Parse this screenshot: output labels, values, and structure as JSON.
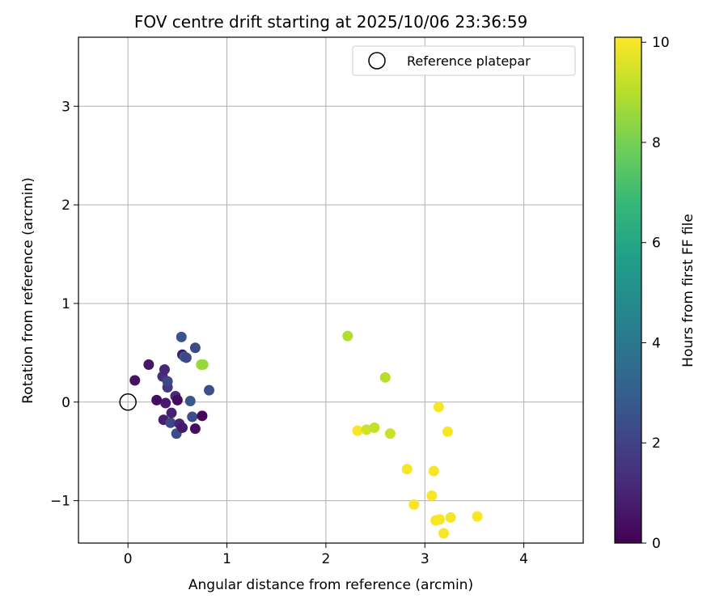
{
  "chart_data": {
    "type": "scatter",
    "title": "FOV centre drift starting at 2025/10/06 23:36:59",
    "xlabel": "Angular distance from reference (arcmin)",
    "ylabel": "Rotation from reference (arcmin)",
    "xlim": [
      -0.5,
      4.6
    ],
    "ylim": [
      -1.43,
      3.7
    ],
    "xticks": [
      0,
      1,
      2,
      3,
      4
    ],
    "xtick_labels": [
      "0",
      "1",
      "2",
      "3",
      "4"
    ],
    "yticks": [
      -1,
      0,
      1,
      2,
      3
    ],
    "ytick_labels": [
      "−1",
      "0",
      "1",
      "2",
      "3"
    ],
    "grid": true,
    "legend": {
      "location": "top-right",
      "entries": [
        "Reference platepar"
      ]
    },
    "reference": {
      "name": "Reference platepar",
      "x": 0,
      "y": 0
    },
    "colorbar": {
      "label": "Hours from first FF file",
      "min": 0,
      "max": 10.1,
      "ticks": [
        0,
        2,
        4,
        6,
        8,
        10
      ],
      "tick_labels": [
        "0",
        "2",
        "4",
        "6",
        "8",
        "10"
      ],
      "colormap": [
        "#440154",
        "#482878",
        "#3e4989",
        "#31688e",
        "#26828e",
        "#1f9e89",
        "#35b779",
        "#6ece58",
        "#b5de2b",
        "#fde725"
      ]
    },
    "series": [
      {
        "name": "FOV centre",
        "points": [
          {
            "x": 0.07,
            "y": 0.22,
            "h": 0.5
          },
          {
            "x": 0.21,
            "y": 0.38,
            "h": 0.6
          },
          {
            "x": 0.29,
            "y": 0.02,
            "h": 0.4
          },
          {
            "x": 0.35,
            "y": 0.26,
            "h": 1.4
          },
          {
            "x": 0.37,
            "y": 0.33,
            "h": 1.1
          },
          {
            "x": 0.38,
            "y": -0.01,
            "h": 0.7
          },
          {
            "x": 0.36,
            "y": -0.18,
            "h": 0.8
          },
          {
            "x": 0.4,
            "y": 0.15,
            "h": 1.6
          },
          {
            "x": 0.4,
            "y": 0.21,
            "h": 2.1
          },
          {
            "x": 0.43,
            "y": -0.21,
            "h": 2.2
          },
          {
            "x": 0.44,
            "y": -0.11,
            "h": 0.9
          },
          {
            "x": 0.48,
            "y": 0.06,
            "h": 1.2
          },
          {
            "x": 0.5,
            "y": 0.02,
            "h": 0.3
          },
          {
            "x": 0.49,
            "y": -0.32,
            "h": 2.4
          },
          {
            "x": 0.52,
            "y": -0.22,
            "h": 1.0
          },
          {
            "x": 0.55,
            "y": 0.48,
            "h": 0.6
          },
          {
            "x": 0.55,
            "y": -0.26,
            "h": 0.7
          },
          {
            "x": 0.54,
            "y": 0.66,
            "h": 2.6
          },
          {
            "x": 0.57,
            "y": 0.46,
            "h": 3.0
          },
          {
            "x": 0.59,
            "y": 0.45,
            "h": 2.2
          },
          {
            "x": 0.63,
            "y": 0.01,
            "h": 2.8
          },
          {
            "x": 0.65,
            "y": -0.15,
            "h": 2.5
          },
          {
            "x": 0.68,
            "y": 0.55,
            "h": 2.3
          },
          {
            "x": 0.68,
            "y": -0.27,
            "h": 0.4
          },
          {
            "x": 0.75,
            "y": -0.14,
            "h": 0.2
          },
          {
            "x": 0.74,
            "y": 0.38,
            "h": 8.7
          },
          {
            "x": 0.76,
            "y": 0.38,
            "h": 8.5
          },
          {
            "x": 0.82,
            "y": 0.12,
            "h": 2.5
          },
          {
            "x": 2.22,
            "y": 0.67,
            "h": 8.9
          },
          {
            "x": 2.6,
            "y": 0.25,
            "h": 9.0
          },
          {
            "x": 2.32,
            "y": -0.29,
            "h": 10.0
          },
          {
            "x": 2.41,
            "y": -0.28,
            "h": 9.4
          },
          {
            "x": 2.49,
            "y": -0.26,
            "h": 9.2
          },
          {
            "x": 2.65,
            "y": -0.32,
            "h": 9.3
          },
          {
            "x": 2.82,
            "y": -0.68,
            "h": 10.0
          },
          {
            "x": 2.89,
            "y": -1.04,
            "h": 10.0
          },
          {
            "x": 3.07,
            "y": -0.95,
            "h": 10.0
          },
          {
            "x": 3.09,
            "y": -0.7,
            "h": 10.0
          },
          {
            "x": 3.11,
            "y": -1.2,
            "h": 10.0
          },
          {
            "x": 3.15,
            "y": -1.19,
            "h": 10.0
          },
          {
            "x": 3.14,
            "y": -0.05,
            "h": 10.0
          },
          {
            "x": 3.19,
            "y": -1.33,
            "h": 10.0
          },
          {
            "x": 3.23,
            "y": -0.3,
            "h": 10.0
          },
          {
            "x": 3.26,
            "y": -1.17,
            "h": 10.0
          },
          {
            "x": 3.53,
            "y": -1.16,
            "h": 10.0
          }
        ]
      }
    ]
  }
}
